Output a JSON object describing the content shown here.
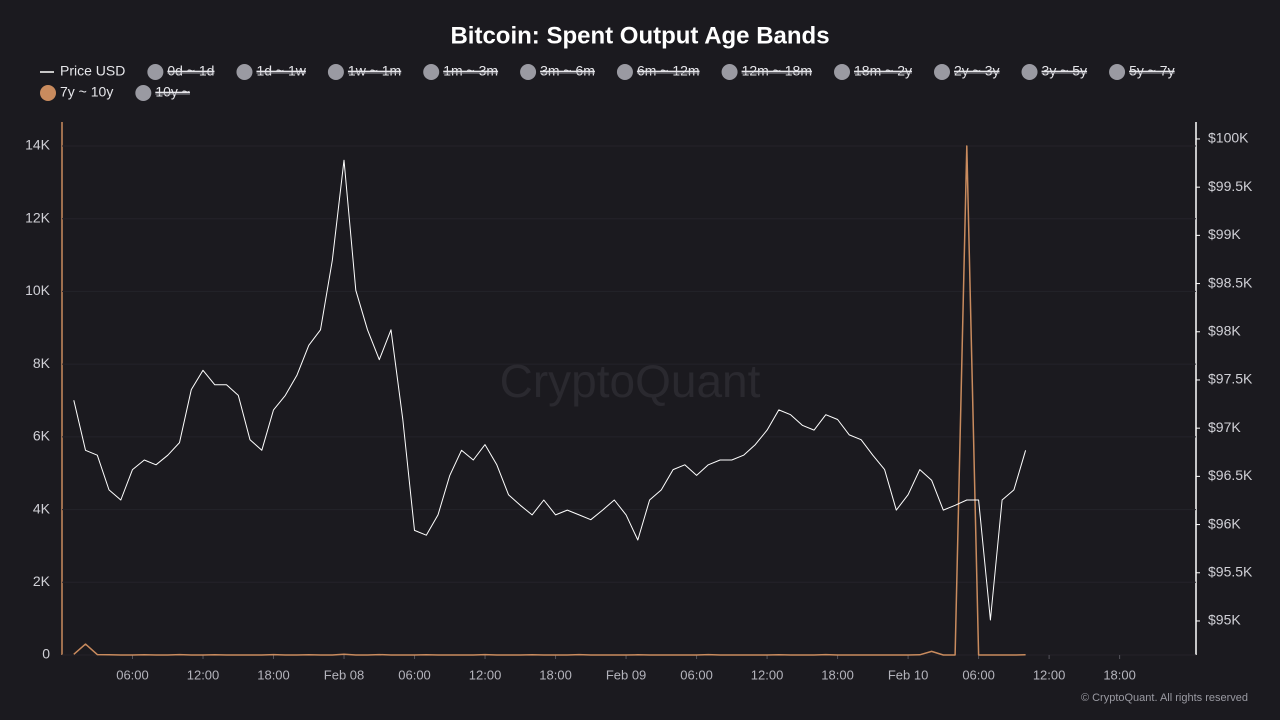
{
  "chart_data": {
    "type": "line",
    "title": "Bitcoin: Spent Output Age Bands",
    "watermark": "CryptoQuant",
    "copyright": "© CryptoQuant. All rights reserved",
    "x": [
      "Feb 07 01:00",
      "Feb 07 02:00",
      "Feb 07 03:00",
      "Feb 07 04:00",
      "Feb 07 05:00",
      "Feb 07 06:00",
      "Feb 07 07:00",
      "Feb 07 08:00",
      "Feb 07 09:00",
      "Feb 07 10:00",
      "Feb 07 11:00",
      "Feb 07 12:00",
      "Feb 07 13:00",
      "Feb 07 14:00",
      "Feb 07 15:00",
      "Feb 07 16:00",
      "Feb 07 17:00",
      "Feb 07 18:00",
      "Feb 07 19:00",
      "Feb 07 20:00",
      "Feb 07 21:00",
      "Feb 07 22:00",
      "Feb 07 23:00",
      "Feb 08 00:00",
      "Feb 08 01:00",
      "Feb 08 02:00",
      "Feb 08 03:00",
      "Feb 08 04:00",
      "Feb 08 05:00",
      "Feb 08 06:00",
      "Feb 08 07:00",
      "Feb 08 08:00",
      "Feb 08 09:00",
      "Feb 08 10:00",
      "Feb 08 11:00",
      "Feb 08 12:00",
      "Feb 08 13:00",
      "Feb 08 14:00",
      "Feb 08 15:00",
      "Feb 08 16:00",
      "Feb 08 17:00",
      "Feb 08 18:00",
      "Feb 08 19:00",
      "Feb 08 20:00",
      "Feb 08 21:00",
      "Feb 08 22:00",
      "Feb 08 23:00",
      "Feb 09 00:00",
      "Feb 09 01:00",
      "Feb 09 02:00",
      "Feb 09 03:00",
      "Feb 09 04:00",
      "Feb 09 05:00",
      "Feb 09 06:00",
      "Feb 09 07:00",
      "Feb 09 08:00",
      "Feb 09 09:00",
      "Feb 09 10:00",
      "Feb 09 11:00",
      "Feb 09 12:00",
      "Feb 09 13:00",
      "Feb 09 14:00",
      "Feb 09 15:00",
      "Feb 09 16:00",
      "Feb 09 17:00",
      "Feb 09 18:00",
      "Feb 09 19:00",
      "Feb 09 20:00",
      "Feb 09 21:00",
      "Feb 09 22:00",
      "Feb 09 23:00",
      "Feb 10 00:00",
      "Feb 10 01:00",
      "Feb 10 02:00",
      "Feb 10 03:00",
      "Feb 10 04:00",
      "Feb 10 05:00",
      "Feb 10 06:00",
      "Feb 10 07:00",
      "Feb 10 08:00",
      "Feb 10 09:00",
      "Feb 10 10:00"
    ],
    "xlim": [
      "Feb 07 00:00",
      "Feb 11 00:30"
    ],
    "xticks": [
      {
        "value": "Feb 07 06:00",
        "label": "06:00"
      },
      {
        "value": "Feb 07 12:00",
        "label": "12:00"
      },
      {
        "value": "Feb 07 18:00",
        "label": "18:00"
      },
      {
        "value": "Feb 08 00:00",
        "label": "Feb 08"
      },
      {
        "value": "Feb 08 06:00",
        "label": "06:00"
      },
      {
        "value": "Feb 08 12:00",
        "label": "12:00"
      },
      {
        "value": "Feb 08 18:00",
        "label": "18:00"
      },
      {
        "value": "Feb 09 00:00",
        "label": "Feb 09"
      },
      {
        "value": "Feb 09 06:00",
        "label": "06:00"
      },
      {
        "value": "Feb 09 12:00",
        "label": "12:00"
      },
      {
        "value": "Feb 09 18:00",
        "label": "18:00"
      },
      {
        "value": "Feb 10 00:00",
        "label": "Feb 10"
      },
      {
        "value": "Feb 10 06:00",
        "label": "06:00"
      },
      {
        "value": "Feb 10 12:00",
        "label": "12:00"
      },
      {
        "value": "Feb 10 18:00",
        "label": "18:00"
      }
    ],
    "ylim": [
      0,
      14660
    ],
    "yticks": [
      0,
      {
        "value": 2000,
        "label": "2K"
      },
      {
        "value": 4000,
        "label": "4K"
      },
      {
        "value": 6000,
        "label": "6K"
      },
      {
        "value": 8000,
        "label": "8K"
      },
      {
        "value": 10000,
        "label": "10K"
      },
      {
        "value": 12000,
        "label": "12K"
      },
      {
        "value": 14000,
        "label": "14K"
      }
    ],
    "y2lim": [
      94647,
      100176
    ],
    "y2ticks": [
      {
        "value": 95000,
        "label": "$95K"
      },
      {
        "value": 95500,
        "label": "$95.5K"
      },
      {
        "value": 96000,
        "label": "$96K"
      },
      {
        "value": 96500,
        "label": "$96.5K"
      },
      {
        "value": 97000,
        "label": "$97K"
      },
      {
        "value": 97500,
        "label": "$97.5K"
      },
      {
        "value": 98000,
        "label": "$98K"
      },
      {
        "value": 98500,
        "label": "$98.5K"
      },
      {
        "value": 99000,
        "label": "$99K"
      },
      {
        "value": 99500,
        "label": "$99.5K"
      },
      {
        "value": 100000,
        "label": "$100K"
      }
    ],
    "series": [
      {
        "name": "Price USD",
        "color": "#ffffff",
        "axis": "y2",
        "visible": true,
        "values": [
          97290,
          96770,
          96720,
          96360,
          96255,
          96570,
          96670,
          96620,
          96720,
          96850,
          97400,
          97600,
          97450,
          97450,
          97340,
          96880,
          96770,
          97190,
          97340,
          97550,
          97860,
          98020,
          98740,
          99780,
          98430,
          98020,
          97710,
          98020,
          97090,
          95940,
          95890,
          96100,
          96510,
          96770,
          96670,
          96830,
          96620,
          96310,
          96200,
          96100,
          96255,
          96100,
          96150,
          96100,
          96050,
          96150,
          96255,
          96100,
          95840,
          96255,
          96360,
          96570,
          96620,
          96510,
          96620,
          96670,
          96670,
          96720,
          96830,
          96980,
          97190,
          97140,
          97030,
          96980,
          97140,
          97090,
          96930,
          96880,
          96720,
          96570,
          96150,
          96310,
          96570,
          96460,
          96150,
          96200,
          96255,
          96255,
          95010,
          96255,
          96360,
          96770
        ]
      },
      {
        "name": "0d ~ 1d",
        "color": "#9a9aa2",
        "visible": false
      },
      {
        "name": "1d ~ 1w",
        "color": "#9a9aa2",
        "visible": false
      },
      {
        "name": "1w ~ 1m",
        "color": "#9a9aa2",
        "visible": false
      },
      {
        "name": "1m ~ 3m",
        "color": "#9a9aa2",
        "visible": false
      },
      {
        "name": "3m ~ 6m",
        "color": "#9a9aa2",
        "visible": false
      },
      {
        "name": "6m ~ 12m",
        "color": "#9a9aa2",
        "visible": false
      },
      {
        "name": "12m ~ 18m",
        "color": "#9a9aa2",
        "visible": false
      },
      {
        "name": "18m ~ 2y",
        "color": "#9a9aa2",
        "visible": false
      },
      {
        "name": "2y ~ 3y",
        "color": "#9a9aa2",
        "visible": false
      },
      {
        "name": "3y ~ 5y",
        "color": "#9a9aa2",
        "visible": false
      },
      {
        "name": "5y ~ 7y",
        "color": "#9a9aa2",
        "visible": false
      },
      {
        "name": "7y ~ 10y",
        "color": "#c98b5e",
        "axis": "y",
        "visible": true,
        "values": [
          20,
          300,
          10,
          5,
          0,
          0,
          5,
          0,
          0,
          10,
          0,
          0,
          5,
          0,
          0,
          0,
          0,
          10,
          0,
          0,
          5,
          0,
          0,
          20,
          0,
          0,
          10,
          0,
          0,
          0,
          5,
          0,
          0,
          0,
          0,
          10,
          0,
          0,
          0,
          5,
          0,
          0,
          0,
          10,
          0,
          0,
          0,
          0,
          5,
          0,
          0,
          0,
          0,
          0,
          10,
          0,
          0,
          0,
          0,
          0,
          5,
          0,
          0,
          0,
          10,
          0,
          0,
          0,
          0,
          0,
          0,
          0,
          5,
          100,
          0,
          0,
          14000,
          0,
          0,
          0,
          0,
          5
        ]
      },
      {
        "name": "10y ~",
        "color": "#9a9aa2",
        "visible": false
      }
    ]
  }
}
